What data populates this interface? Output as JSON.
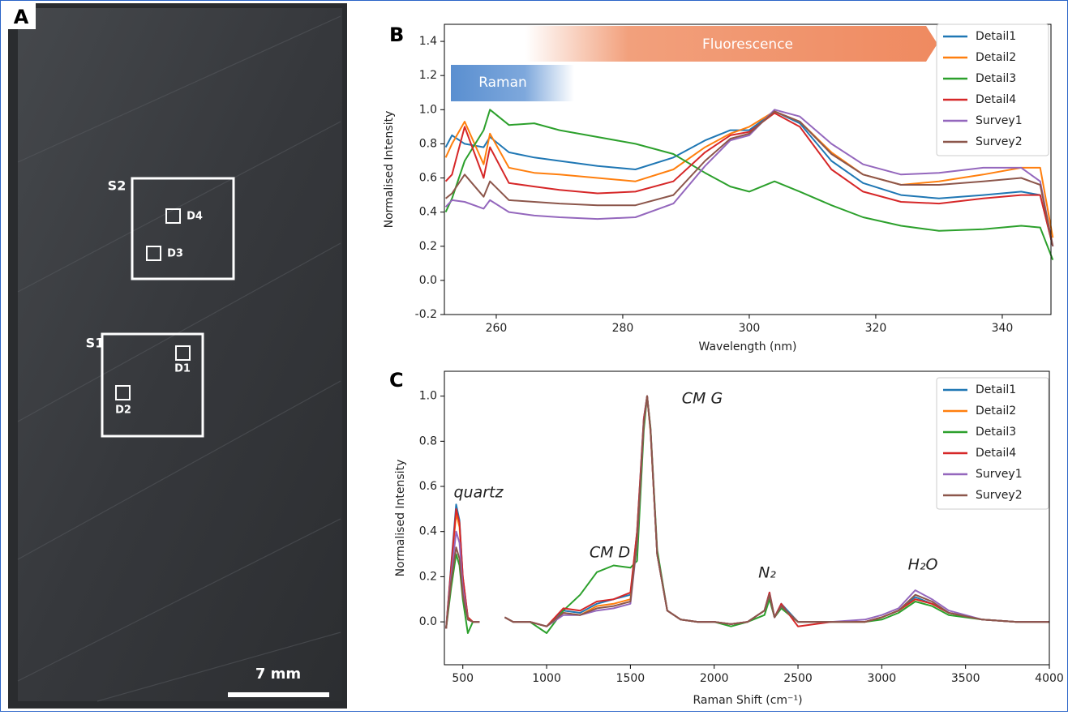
{
  "photo": {
    "label": "A",
    "regions": [
      "S1",
      "S2"
    ],
    "details": [
      "D1",
      "D2",
      "D3",
      "D4"
    ],
    "scale_bar": "7 mm"
  },
  "chart_data": [
    {
      "type": "line",
      "label": "B",
      "x_label": "Wavelength (nm)",
      "y_label": "Normalised Intensity",
      "annotations": [
        "Raman",
        "Fluorescence"
      ],
      "x": [
        252,
        253,
        255,
        258,
        259,
        262,
        266,
        270,
        276,
        282,
        288,
        293,
        297,
        300,
        304,
        308,
        313,
        318,
        324,
        330,
        337,
        343,
        346,
        348
      ],
      "series": [
        {
          "name": "Detail1",
          "color": "#1f77b4",
          "values": [
            0.78,
            0.85,
            0.8,
            0.78,
            0.84,
            0.75,
            0.72,
            0.7,
            0.67,
            0.65,
            0.72,
            0.82,
            0.88,
            0.88,
            0.99,
            0.92,
            0.7,
            0.57,
            0.5,
            0.48,
            0.5,
            0.52,
            0.5,
            0.2
          ]
        },
        {
          "name": "Detail2",
          "color": "#ff7f0e",
          "values": [
            0.72,
            0.8,
            0.93,
            0.68,
            0.86,
            0.66,
            0.63,
            0.62,
            0.6,
            0.58,
            0.65,
            0.78,
            0.86,
            0.9,
            0.99,
            0.93,
            0.75,
            0.62,
            0.56,
            0.58,
            0.62,
            0.66,
            0.66,
            0.25
          ]
        },
        {
          "name": "Detail3",
          "color": "#2ca02c",
          "values": [
            0.4,
            0.48,
            0.7,
            0.88,
            1.0,
            0.91,
            0.92,
            0.88,
            0.84,
            0.8,
            0.74,
            0.63,
            0.55,
            0.52,
            0.58,
            0.52,
            0.44,
            0.37,
            0.32,
            0.29,
            0.3,
            0.32,
            0.31,
            0.12
          ]
        },
        {
          "name": "Detail4",
          "color": "#d62728",
          "values": [
            0.58,
            0.62,
            0.9,
            0.6,
            0.78,
            0.57,
            0.55,
            0.53,
            0.51,
            0.52,
            0.58,
            0.75,
            0.85,
            0.87,
            0.98,
            0.9,
            0.65,
            0.52,
            0.46,
            0.45,
            0.48,
            0.5,
            0.5,
            0.2
          ]
        },
        {
          "name": "Survey1",
          "color": "#9467bd",
          "values": [
            0.43,
            0.47,
            0.46,
            0.42,
            0.47,
            0.4,
            0.38,
            0.37,
            0.36,
            0.37,
            0.45,
            0.67,
            0.82,
            0.85,
            1.0,
            0.96,
            0.8,
            0.68,
            0.62,
            0.63,
            0.66,
            0.66,
            0.58,
            0.2
          ]
        },
        {
          "name": "Survey2",
          "color": "#8c564b",
          "values": [
            0.48,
            0.51,
            0.62,
            0.49,
            0.58,
            0.47,
            0.46,
            0.45,
            0.44,
            0.44,
            0.5,
            0.7,
            0.83,
            0.86,
            0.99,
            0.93,
            0.74,
            0.62,
            0.56,
            0.56,
            0.58,
            0.6,
            0.56,
            0.2
          ]
        }
      ],
      "xlim": [
        251.8,
        347.7
      ],
      "ylim": [
        -0.2,
        1.5
      ],
      "xticks": [
        260,
        280,
        300,
        320,
        340
      ],
      "yticks": [
        -0.2,
        {
          "value": 0,
          "label": "0.0"
        },
        0.2,
        0.4,
        0.6,
        0.8,
        {
          "value": 1,
          "label": "1.0"
        },
        1.2,
        1.4
      ],
      "legend": "upper right"
    },
    {
      "type": "line",
      "label": "C",
      "x_label": "Raman Shift (cm⁻¹)",
      "y_label": "Normalised Intensity",
      "annotations": [
        "quartz",
        "CM D",
        "CM G",
        "N₂",
        "H₂O"
      ],
      "x": [
        400,
        430,
        460,
        480,
        500,
        530,
        560,
        600,
        650,
        750,
        800,
        900,
        1000,
        1100,
        1200,
        1300,
        1400,
        1500,
        1540,
        1580,
        1600,
        1620,
        1660,
        1720,
        1800,
        1900,
        2000,
        2100,
        2200,
        2300,
        2330,
        2360,
        2400,
        2500,
        2700,
        2900,
        3000,
        3100,
        3200,
        3300,
        3400,
        3600,
        3800,
        4000
      ],
      "series": [
        {
          "name": "Detail1",
          "color": "#1f77b4",
          "values": [
            -0.03,
            0.25,
            0.52,
            0.45,
            0.2,
            0.02,
            0.0,
            0.0,
            null,
            0.02,
            0.0,
            0.0,
            -0.02,
            0.05,
            0.04,
            0.08,
            0.1,
            0.12,
            0.4,
            0.9,
            1.0,
            0.85,
            0.3,
            0.05,
            0.01,
            0.0,
            0.0,
            -0.01,
            0.0,
            0.05,
            0.13,
            0.02,
            0.08,
            0.0,
            0.0,
            0.0,
            0.02,
            0.05,
            0.11,
            0.08,
            0.04,
            0.01,
            0.0,
            0.0
          ]
        },
        {
          "name": "Detail2",
          "color": "#ff7f0e",
          "values": [
            -0.03,
            0.23,
            0.48,
            0.42,
            0.18,
            0.02,
            0.0,
            0.0,
            null,
            0.02,
            0.0,
            0.0,
            -0.02,
            0.04,
            0.03,
            0.07,
            0.08,
            0.1,
            0.38,
            0.88,
            1.0,
            0.84,
            0.3,
            0.05,
            0.01,
            0.0,
            0.0,
            -0.01,
            0.0,
            0.05,
            0.12,
            0.02,
            0.07,
            0.0,
            0.0,
            0.0,
            0.02,
            0.05,
            0.1,
            0.08,
            0.04,
            0.01,
            0.0,
            0.0
          ]
        },
        {
          "name": "Detail3",
          "color": "#2ca02c",
          "values": [
            -0.03,
            0.15,
            0.3,
            0.25,
            0.1,
            -0.05,
            0.0,
            0.0,
            null,
            0.02,
            0.0,
            0.0,
            -0.05,
            0.05,
            0.12,
            0.22,
            0.25,
            0.24,
            0.27,
            0.85,
            1.0,
            0.86,
            0.32,
            0.05,
            0.01,
            0.0,
            0.0,
            -0.02,
            0.0,
            0.03,
            0.1,
            0.02,
            0.06,
            0.0,
            0.0,
            0.0,
            0.01,
            0.04,
            0.09,
            0.07,
            0.03,
            0.01,
            0.0,
            0.0
          ]
        },
        {
          "name": "Detail4",
          "color": "#d62728",
          "values": [
            -0.03,
            0.24,
            0.5,
            0.44,
            0.2,
            0.02,
            0.0,
            0.0,
            null,
            0.02,
            0.0,
            0.0,
            -0.02,
            0.06,
            0.05,
            0.09,
            0.1,
            0.13,
            0.4,
            0.9,
            1.0,
            0.85,
            0.3,
            0.05,
            0.01,
            0.0,
            0.0,
            -0.01,
            0.0,
            0.05,
            0.13,
            0.02,
            0.08,
            -0.02,
            0.0,
            0.0,
            0.02,
            0.05,
            0.1,
            0.08,
            0.04,
            0.01,
            0.0,
            0.0
          ]
        },
        {
          "name": "Survey1",
          "color": "#9467bd",
          "values": [
            -0.03,
            0.2,
            0.4,
            0.35,
            0.15,
            0.01,
            0.0,
            0.0,
            null,
            0.02,
            0.0,
            0.0,
            -0.02,
            0.03,
            0.03,
            0.05,
            0.06,
            0.08,
            0.35,
            0.88,
            1.0,
            0.85,
            0.3,
            0.05,
            0.01,
            0.0,
            0.0,
            -0.01,
            0.0,
            0.05,
            0.12,
            0.02,
            0.07,
            0.0,
            0.0,
            0.01,
            0.03,
            0.06,
            0.14,
            0.1,
            0.05,
            0.01,
            0.0,
            0.0
          ]
        },
        {
          "name": "Survey2",
          "color": "#8c564b",
          "values": [
            -0.03,
            0.18,
            0.33,
            0.28,
            0.12,
            0.01,
            0.0,
            0.0,
            null,
            0.02,
            0.0,
            0.0,
            -0.02,
            0.04,
            0.03,
            0.06,
            0.07,
            0.09,
            0.36,
            0.88,
            1.0,
            0.85,
            0.3,
            0.05,
            0.01,
            0.0,
            0.0,
            -0.01,
            0.0,
            0.05,
            0.12,
            0.02,
            0.07,
            0.0,
            0.0,
            0.0,
            0.02,
            0.05,
            0.12,
            0.09,
            0.04,
            0.01,
            0.0,
            0.0
          ]
        }
      ],
      "xlim": [
        390,
        4000
      ],
      "ylim": [
        -0.19,
        1.11
      ],
      "xticks": [
        500,
        1000,
        1500,
        2000,
        2500,
        3000,
        3500,
        4000
      ],
      "yticks": [
        {
          "value": 0,
          "label": "0.0"
        },
        0.2,
        0.4,
        0.6,
        0.8,
        {
          "value": 1,
          "label": "1.0"
        }
      ],
      "legend": "upper right"
    }
  ]
}
